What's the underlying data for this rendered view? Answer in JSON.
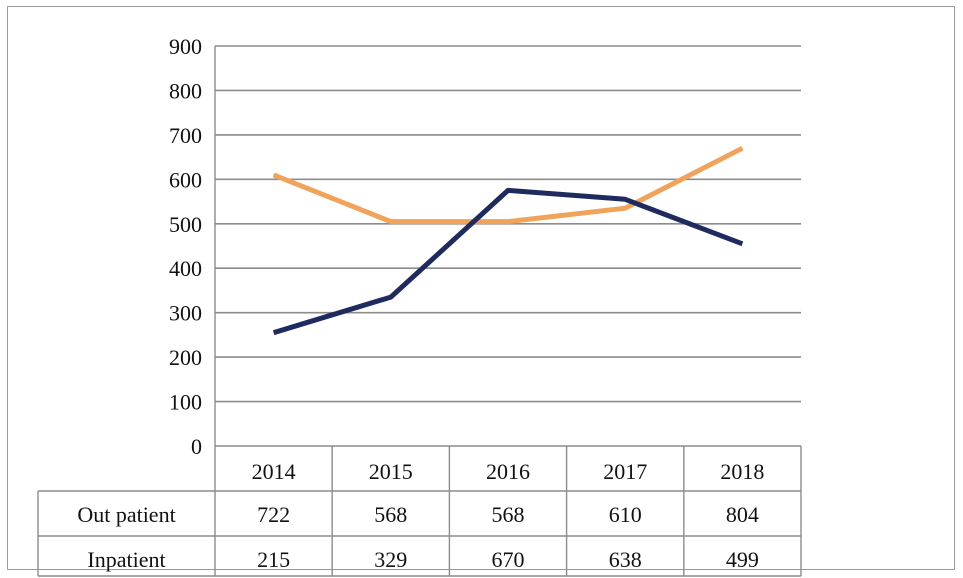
{
  "chart_data": {
    "type": "line",
    "title": "",
    "xlabel": "",
    "ylabel": "",
    "ylim": [
      0,
      900
    ],
    "yticks": [
      "0",
      "100",
      "200",
      "300",
      "400",
      "500",
      "600",
      "700",
      "800",
      "900"
    ],
    "categories": [
      "2014",
      "2015",
      "2016",
      "2017",
      "2018"
    ],
    "grid": true,
    "series": [
      {
        "name": "Out patient",
        "values": [
          722,
          568,
          568,
          610,
          804
        ],
        "color": "#f0a35a"
      },
      {
        "name": "Inpatient",
        "values": [
          215,
          329,
          670,
          638,
          499
        ],
        "color": "#1f2b5e"
      }
    ]
  },
  "line_plot": {
    "note_y_values_as_drawn": true,
    "series": [
      {
        "values": [
          610,
          505,
          505,
          535,
          670
        ]
      },
      {
        "values": [
          255,
          335,
          575,
          555,
          455
        ]
      }
    ]
  }
}
